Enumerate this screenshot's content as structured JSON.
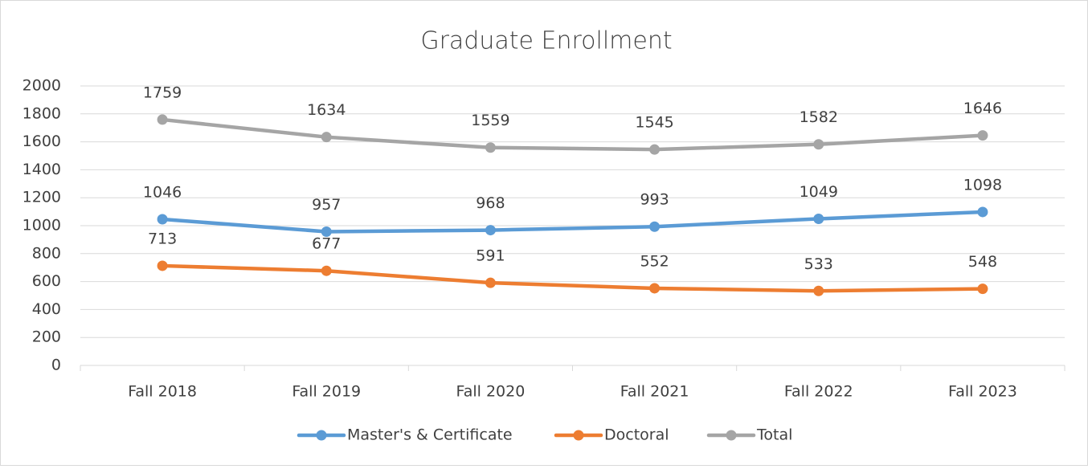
{
  "chart_data": {
    "type": "line",
    "title": "Graduate Enrollment",
    "categories": [
      "Fall 2018",
      "Fall 2019",
      "Fall 2020",
      "Fall 2021",
      "Fall 2022",
      "Fall 2023"
    ],
    "series": [
      {
        "name": "Master's & Certificate",
        "color": "#5b9bd5",
        "values": [
          1046,
          957,
          968,
          993,
          1049,
          1098
        ]
      },
      {
        "name": "Doctoral",
        "color": "#ed7d31",
        "values": [
          713,
          677,
          591,
          552,
          533,
          548
        ]
      },
      {
        "name": "Total",
        "color": "#a5a5a5",
        "values": [
          1759,
          1634,
          1559,
          1545,
          1582,
          1646
        ]
      }
    ],
    "ylim": [
      0,
      2000
    ],
    "yticks": [
      0,
      200,
      400,
      600,
      800,
      1000,
      1200,
      1400,
      1600,
      1800,
      2000
    ],
    "grid": true,
    "legend": "bottom"
  }
}
